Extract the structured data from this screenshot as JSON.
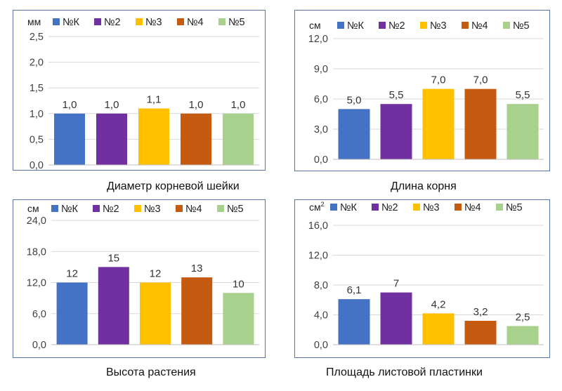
{
  "colors": [
    "#4472c4",
    "#7030a0",
    "#ffc000",
    "#c55a11",
    "#a9d18e"
  ],
  "chart_data": [
    {
      "type": "bar",
      "caption": "Диаметр корневой шейки",
      "unit": "мм",
      "legend": [
        "№К",
        "№2",
        "№3",
        "№4",
        "№5"
      ],
      "legend_position": "top",
      "values": [
        1.0,
        1.0,
        1.1,
        1.0,
        1.0
      ],
      "value_labels": [
        "1,0",
        "1,0",
        "1,1",
        "1,0",
        "1,0"
      ],
      "ylim": [
        0,
        2.5
      ],
      "yticks": [
        "0,0",
        "0,5",
        "1,0",
        "1,5",
        "2,0",
        "2,5"
      ],
      "grid": true
    },
    {
      "type": "bar",
      "caption": "Длина корня",
      "unit": "см",
      "legend": [
        "№К",
        "№2",
        "№3",
        "№4",
        "№5"
      ],
      "legend_position": "top",
      "values": [
        5.0,
        5.5,
        7.0,
        7.0,
        5.5
      ],
      "value_labels": [
        "5,0",
        "5,5",
        "7,0",
        "7,0",
        "5,5"
      ],
      "ylim": [
        0,
        12
      ],
      "yticks": [
        "0,0",
        "3,0",
        "6,0",
        "9,0",
        "12,0"
      ],
      "grid": true
    },
    {
      "type": "bar",
      "caption": "Высота растения",
      "unit": "см",
      "legend": [
        "№К",
        "№2",
        "№3",
        "№4",
        "№5"
      ],
      "legend_position": "top",
      "values": [
        12,
        15,
        12,
        13,
        10
      ],
      "value_labels": [
        "12",
        "15",
        "12",
        "13",
        "10"
      ],
      "ylim": [
        0,
        24
      ],
      "yticks": [
        "0,0",
        "6,0",
        "12,0",
        "18,0",
        "24,0"
      ],
      "grid": true
    },
    {
      "type": "bar",
      "caption": "Площадь листовой пластинки",
      "unit": "см",
      "unit_sup": "2",
      "legend": [
        "№К",
        "№2",
        "№3",
        "№4",
        "№5"
      ],
      "legend_position": "top",
      "values": [
        6.1,
        7,
        4.2,
        3.2,
        2.5
      ],
      "value_labels": [
        "6,1",
        "7",
        "4,2",
        "3,2",
        "2,5"
      ],
      "ylim": [
        0,
        16
      ],
      "yticks": [
        "0,0",
        "4,0",
        "8,0",
        "12,0",
        "16,0"
      ],
      "grid": true
    }
  ]
}
